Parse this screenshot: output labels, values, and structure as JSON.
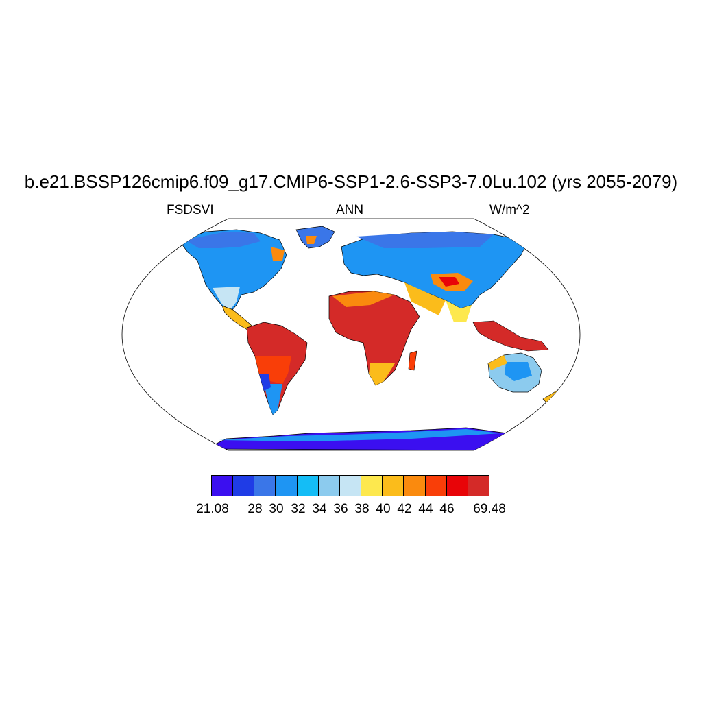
{
  "title": "b.e21.BSSP126cmip6.f09_g17.CMIP6-SSP1-2.6-SSP3-7.0Lu.102 (yrs 2055-2079)",
  "subtitle_left": "FSDSVI",
  "subtitle_center": "ANN",
  "subtitle_right": "W/m^2",
  "colorbar": {
    "colors": [
      "#3b0ff0",
      "#1f3ce6",
      "#3a76e8",
      "#1e95f3",
      "#14bdf6",
      "#8ccbee",
      "#c6e5f4",
      "#fde84e",
      "#fbbc1b",
      "#fa8a0e",
      "#f93e08",
      "#e80408",
      "#d42a28"
    ],
    "labels": [
      "21.08",
      "28",
      "30",
      "32",
      "34",
      "36",
      "38",
      "40",
      "42",
      "44",
      "46",
      "69.48"
    ]
  },
  "map": {
    "projection": "Robinson",
    "field": "FSDSVI",
    "ocean_color": "#ffffff",
    "coastline_color": "#000000"
  }
}
